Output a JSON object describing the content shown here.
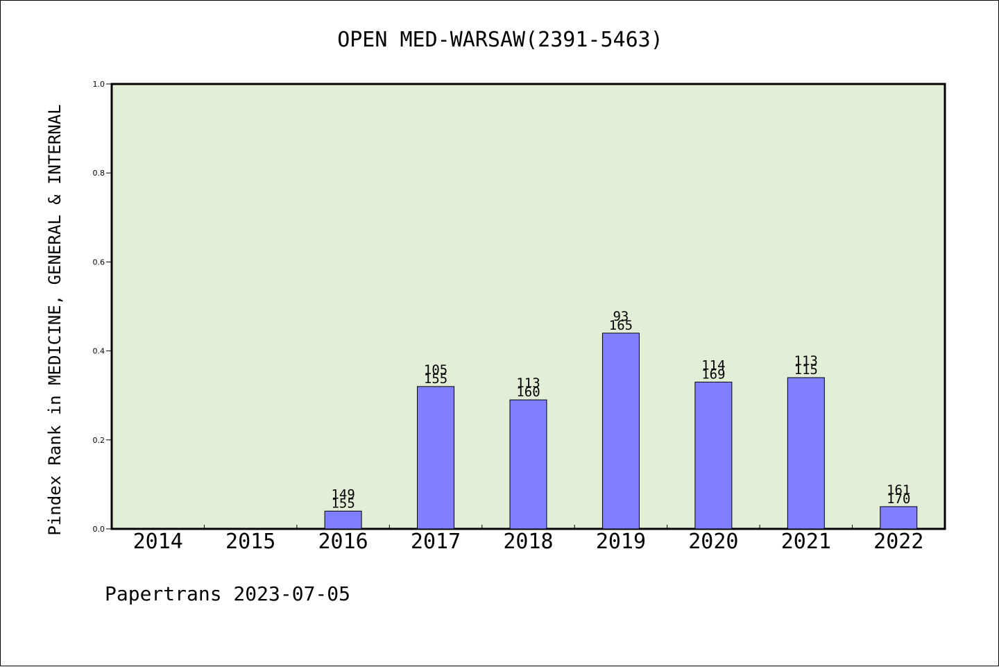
{
  "chart_data": {
    "type": "bar",
    "title": "OPEN MED-WARSAW(2391-5463)",
    "ylabel": "Pindex Rank in MEDICINE, GENERAL & INTERNAL",
    "xlabel": "",
    "footer": "Papertrans 2023-07-05",
    "ylim": [
      0,
      1.0
    ],
    "yticks": [
      "0.0",
      "0.2",
      "0.4",
      "0.6",
      "0.8",
      "1.0"
    ],
    "categories": [
      "2014",
      "2015",
      "2016",
      "2017",
      "2018",
      "2019",
      "2020",
      "2021",
      "2022"
    ],
    "values": [
      null,
      null,
      0.04,
      0.32,
      0.29,
      0.44,
      0.33,
      0.34,
      0.05
    ],
    "labels_top": [
      "",
      "",
      "149",
      "105",
      "113",
      "93",
      "114",
      "113",
      "161"
    ],
    "labels_bottom": [
      "",
      "",
      "155",
      "155",
      "160",
      "165",
      "169",
      "115",
      "170"
    ],
    "grid": false,
    "colors": {
      "plot_background": "#e2efd6",
      "bar_fill": "#8080ff",
      "bar_stroke": "#000000"
    }
  }
}
